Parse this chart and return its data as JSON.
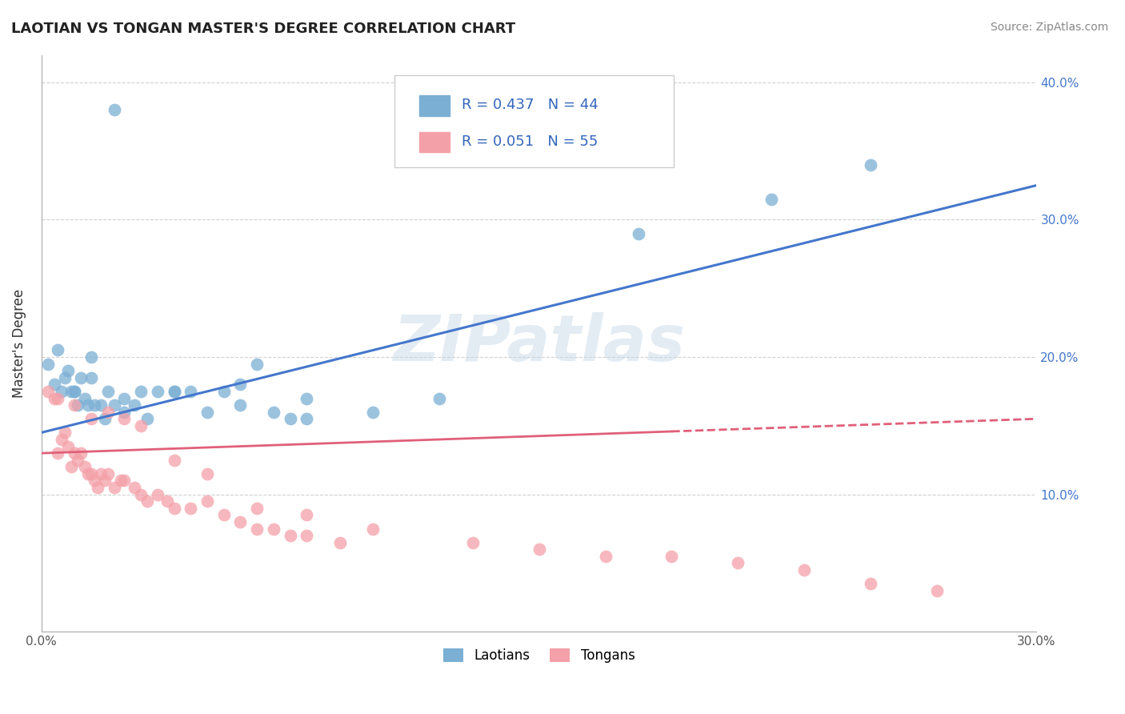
{
  "title": "LAOTIAN VS TONGAN MASTER'S DEGREE CORRELATION CHART",
  "source": "Source: ZipAtlas.com",
  "xlabel_laotians": "Laotians",
  "xlabel_tongans": "Tongans",
  "ylabel": "Master's Degree",
  "xlim": [
    0.0,
    0.3
  ],
  "ylim": [
    0.0,
    0.42
  ],
  "color_laotian": "#7BAFD4",
  "color_tongan": "#F4A0A8",
  "color_laotian_line": "#4477CC",
  "color_tongan_line": "#E0607A",
  "watermark_text": "ZIPatlas",
  "watermark_color": "#C8D8E8",
  "background_color": "#FFFFFF",
  "grid_color": "#CCCCCC",
  "legend_r_laotian": "R = 0.437",
  "legend_n_laotian": "N = 44",
  "legend_r_tongan": "R = 0.051",
  "legend_n_tongan": "N = 55",
  "lao_line_x0": 0.0,
  "lao_line_y0": 0.145,
  "lao_line_x1": 0.3,
  "lao_line_y1": 0.325,
  "ton_line_x0": 0.0,
  "ton_line_y0": 0.13,
  "ton_line_x1": 0.3,
  "ton_line_y1": 0.155,
  "ton_line_solid_end": 0.19,
  "laotian_x": [
    0.002,
    0.004,
    0.005,
    0.006,
    0.007,
    0.008,
    0.009,
    0.01,
    0.011,
    0.012,
    0.013,
    0.014,
    0.015,
    0.016,
    0.018,
    0.019,
    0.02,
    0.022,
    0.025,
    0.028,
    0.03,
    0.032,
    0.035,
    0.04,
    0.045,
    0.05,
    0.055,
    0.06,
    0.065,
    0.07,
    0.075,
    0.08,
    0.01,
    0.015,
    0.025,
    0.04,
    0.06,
    0.08,
    0.1,
    0.12,
    0.022,
    0.18,
    0.22,
    0.25
  ],
  "laotian_y": [
    0.195,
    0.18,
    0.205,
    0.175,
    0.185,
    0.19,
    0.175,
    0.175,
    0.165,
    0.185,
    0.17,
    0.165,
    0.2,
    0.165,
    0.165,
    0.155,
    0.175,
    0.165,
    0.16,
    0.165,
    0.175,
    0.155,
    0.175,
    0.175,
    0.175,
    0.16,
    0.175,
    0.165,
    0.195,
    0.16,
    0.155,
    0.17,
    0.175,
    0.185,
    0.17,
    0.175,
    0.18,
    0.155,
    0.16,
    0.17,
    0.38,
    0.29,
    0.315,
    0.34
  ],
  "tongan_x": [
    0.002,
    0.004,
    0.005,
    0.006,
    0.007,
    0.008,
    0.009,
    0.01,
    0.011,
    0.012,
    0.013,
    0.014,
    0.015,
    0.016,
    0.017,
    0.018,
    0.019,
    0.02,
    0.022,
    0.024,
    0.025,
    0.028,
    0.03,
    0.032,
    0.035,
    0.038,
    0.04,
    0.045,
    0.05,
    0.055,
    0.06,
    0.065,
    0.07,
    0.075,
    0.08,
    0.09,
    0.005,
    0.01,
    0.015,
    0.02,
    0.025,
    0.03,
    0.04,
    0.05,
    0.065,
    0.08,
    0.1,
    0.13,
    0.15,
    0.17,
    0.19,
    0.21,
    0.23,
    0.25,
    0.27
  ],
  "tongan_y": [
    0.175,
    0.17,
    0.13,
    0.14,
    0.145,
    0.135,
    0.12,
    0.13,
    0.125,
    0.13,
    0.12,
    0.115,
    0.115,
    0.11,
    0.105,
    0.115,
    0.11,
    0.115,
    0.105,
    0.11,
    0.11,
    0.105,
    0.1,
    0.095,
    0.1,
    0.095,
    0.09,
    0.09,
    0.095,
    0.085,
    0.08,
    0.075,
    0.075,
    0.07,
    0.07,
    0.065,
    0.17,
    0.165,
    0.155,
    0.16,
    0.155,
    0.15,
    0.125,
    0.115,
    0.09,
    0.085,
    0.075,
    0.065,
    0.06,
    0.055,
    0.055,
    0.05,
    0.045,
    0.035,
    0.03
  ]
}
